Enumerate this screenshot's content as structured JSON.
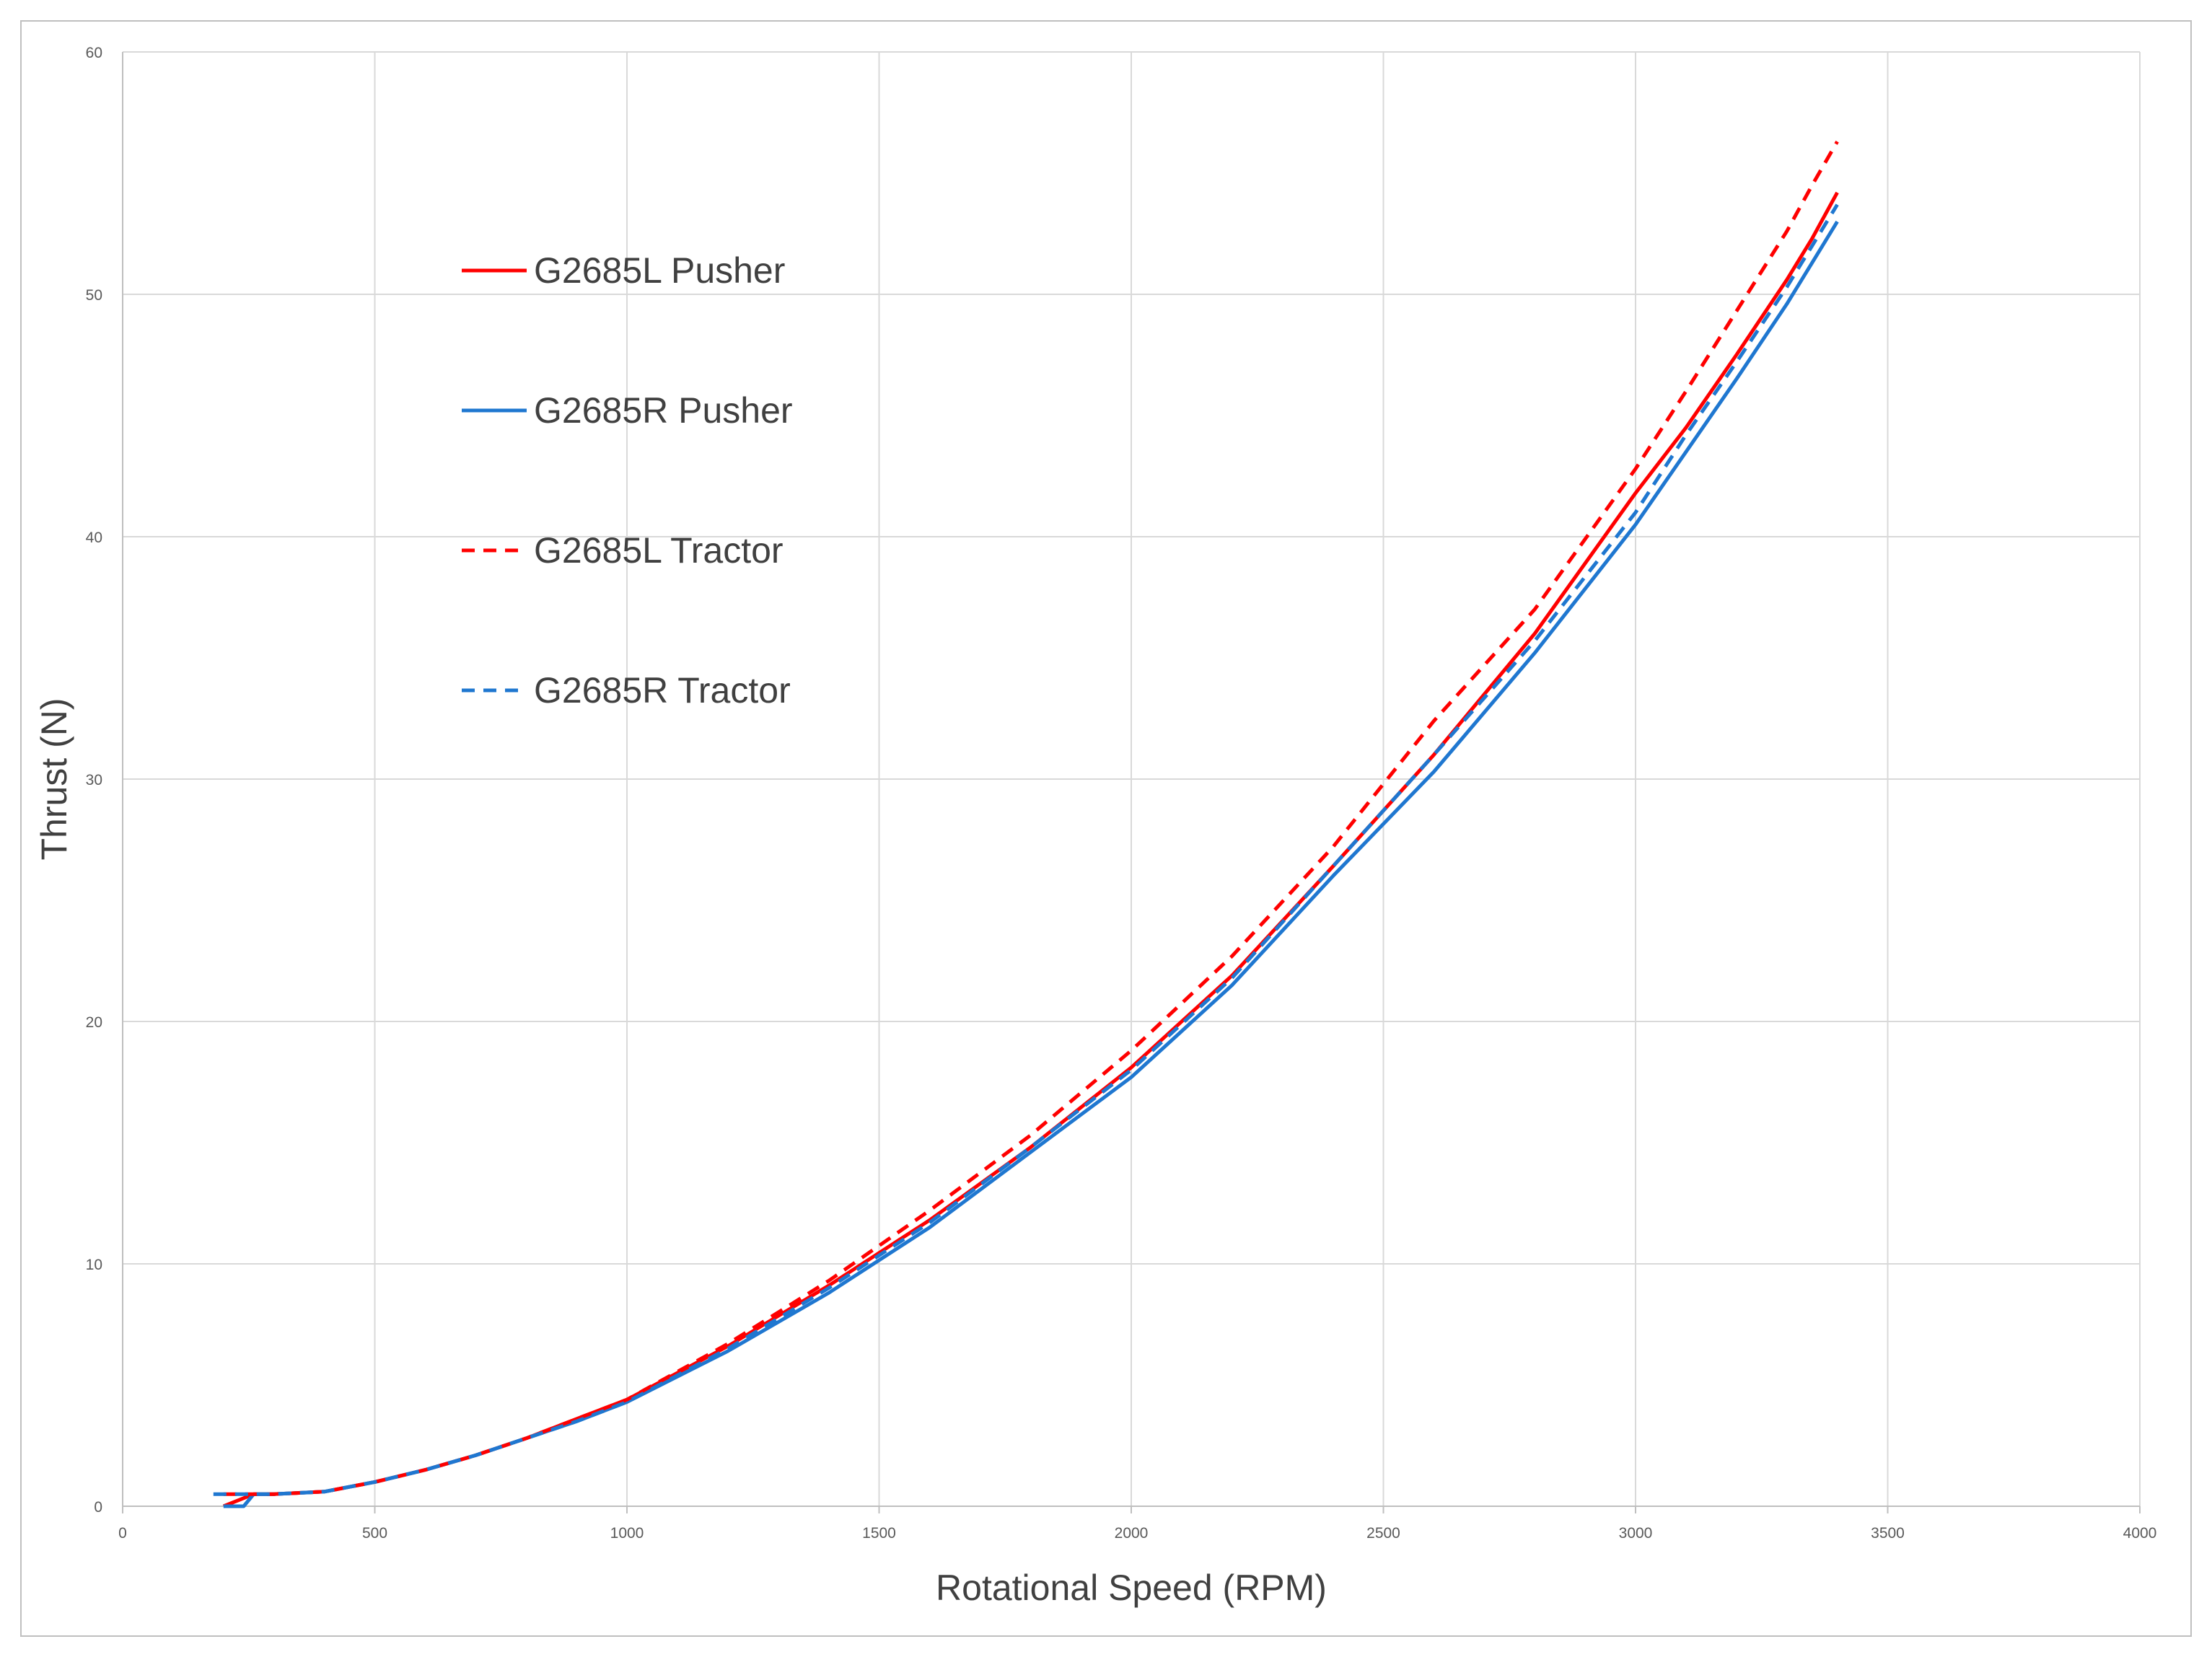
{
  "chart_data": {
    "type": "line",
    "xlabel": "Rotational Speed (RPM)",
    "ylabel": "Thrust (N)",
    "xlim": [
      0,
      4000
    ],
    "ylim": [
      0,
      60
    ],
    "xticks": [
      0,
      500,
      1000,
      1500,
      2000,
      2500,
      3000,
      3500,
      4000
    ],
    "yticks": [
      0,
      10,
      20,
      30,
      40,
      50,
      60
    ],
    "grid": true,
    "legend_position": "upper-left inside plot",
    "series": [
      {
        "name": "G2685L Pusher",
        "color": "#ff0000",
        "dash": "solid",
        "x": [
          200,
          260,
          300,
          400,
          500,
          600,
          700,
          800,
          900,
          1000,
          1200,
          1400,
          1600,
          1800,
          2000,
          2200,
          2400,
          2600,
          2800,
          3000,
          3100,
          3200,
          3300,
          3350,
          3400
        ],
        "y": [
          0,
          0.5,
          0.5,
          0.6,
          1.0,
          1.5,
          2.1,
          2.8,
          3.6,
          4.4,
          6.6,
          9.1,
          11.8,
          14.8,
          18.1,
          21.9,
          26.4,
          31.0,
          36.0,
          41.8,
          44.5,
          47.5,
          50.6,
          52.3,
          54.2
        ]
      },
      {
        "name": "G2685R Pusher",
        "color": "#1f77d0",
        "dash": "solid",
        "x": [
          200,
          240,
          260,
          300,
          400,
          500,
          600,
          700,
          800,
          900,
          1000,
          1200,
          1400,
          1600,
          1800,
          2000,
          2200,
          2400,
          2600,
          2800,
          3000,
          3100,
          3200,
          3300,
          3350,
          3400
        ],
        "y": [
          0,
          0,
          0.5,
          0.5,
          0.6,
          1.0,
          1.5,
          2.1,
          2.8,
          3.5,
          4.3,
          6.4,
          8.8,
          11.5,
          14.6,
          17.7,
          21.5,
          26.0,
          30.3,
          35.2,
          40.5,
          43.5,
          46.5,
          49.6,
          51.3,
          53.0
        ]
      },
      {
        "name": "G2685L Tractor",
        "color": "#ff0000",
        "dash": "dashed",
        "x": [
          200,
          300,
          400,
          500,
          600,
          700,
          800,
          900,
          1000,
          1200,
          1400,
          1600,
          1800,
          2000,
          2200,
          2400,
          2600,
          2800,
          3000,
          3100,
          3200,
          3300,
          3350,
          3400
        ],
        "y": [
          0.5,
          0.5,
          0.6,
          1.0,
          1.5,
          2.1,
          2.8,
          3.6,
          4.4,
          6.7,
          9.3,
          12.2,
          15.3,
          18.8,
          22.7,
          27.2,
          32.4,
          37.0,
          42.8,
          46.0,
          49.3,
          52.6,
          54.5,
          56.3
        ]
      },
      {
        "name": "G2685R Tractor",
        "color": "#1f77d0",
        "dash": "dashed",
        "x": [
          180,
          300,
          400,
          500,
          600,
          700,
          800,
          900,
          1000,
          1200,
          1400,
          1600,
          1800,
          2000,
          2200,
          2400,
          2600,
          2800,
          3000,
          3100,
          3200,
          3300,
          3350,
          3400
        ],
        "y": [
          0.5,
          0.5,
          0.6,
          1.0,
          1.5,
          2.1,
          2.8,
          3.5,
          4.3,
          6.5,
          9.0,
          11.7,
          14.8,
          18.0,
          21.8,
          26.4,
          31.0,
          35.7,
          41.0,
          44.2,
          47.2,
          50.3,
          52.0,
          53.7
        ]
      }
    ]
  }
}
